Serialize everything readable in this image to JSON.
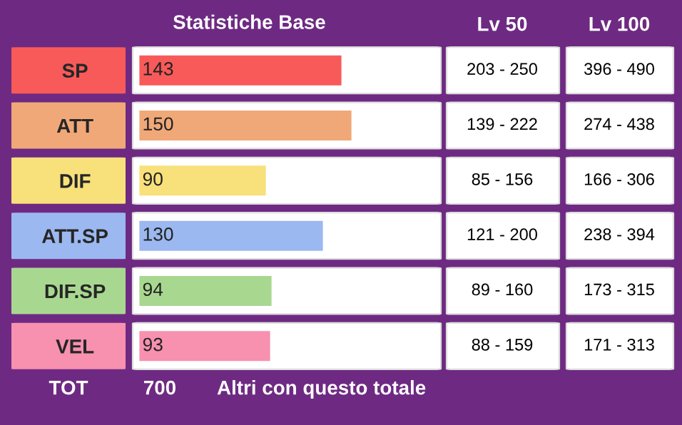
{
  "chart_data": {
    "type": "bar",
    "orientation": "horizontal",
    "title": "Statistiche Base",
    "categories": [
      "SP",
      "ATT",
      "DIF",
      "ATT.SP",
      "DIF.SP",
      "VEL"
    ],
    "values": [
      143,
      150,
      90,
      130,
      94,
      93
    ],
    "colors": [
      "#f85a5a",
      "#f0a878",
      "#f8e07a",
      "#9cb8f0",
      "#a8d890",
      "#f890b0"
    ],
    "legend": false,
    "data_labels": true,
    "grid": false,
    "tick_labels": "y",
    "annotations": [
      "Lv 50",
      "Lv 100",
      "203 - 250",
      "396 - 490",
      "139 - 222",
      "274 - 438",
      "85 - 156",
      "166 - 306",
      "121 - 200",
      "238 - 394",
      "89 - 160",
      "173 - 315",
      "88 - 159",
      "171 - 313",
      "TOT",
      "700",
      "Altri con questo totale"
    ]
  }
}
